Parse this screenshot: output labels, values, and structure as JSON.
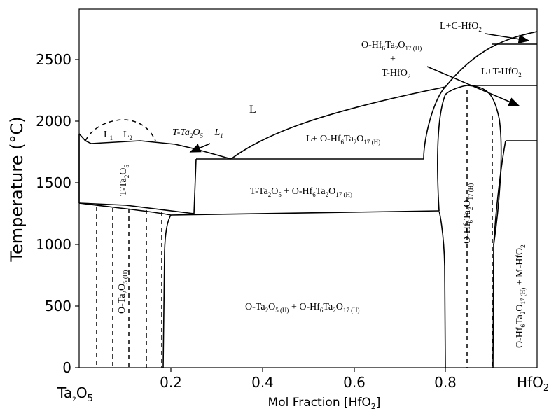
{
  "axes": {
    "ylabel": "Temperature (°C)",
    "xlabel": "Mol Fraction [HfO",
    "xlabel_sub": "2",
    "xlabel_end": "]",
    "y_ticks": [
      "0",
      "500",
      "1000",
      "1500",
      "2000",
      "2500"
    ],
    "x_ticks": [
      "0.2",
      "0.4",
      "0.6",
      "0.8"
    ],
    "x_left_end": {
      "main": "Ta",
      "s1": "2",
      "mid": "O",
      "s2": "5"
    },
    "x_right_end": {
      "main": "HfO",
      "s1": "2"
    }
  },
  "regions": {
    "liquid": "L",
    "l1_l2": {
      "a": "L",
      "s1": "1",
      "b": " + L",
      "s2": "2"
    },
    "t_ta2o5_l1": {
      "a": "T-Ta",
      "s1": "2",
      "b": "O",
      "s2": "5",
      "c": " + L",
      "s3": "1"
    },
    "l_plus_o": {
      "a": "L+ O-Hf",
      "s1": "6",
      "b": "Ta",
      "s2": "2",
      "c": "O",
      "s3": "17 (H)"
    },
    "t_ta2o5": {
      "a": "T-Ta",
      "s1": "2",
      "b": "O",
      "s2": "5"
    },
    "t_ta2o5_o": {
      "a": "T-Ta",
      "s1": "2",
      "b": "O",
      "s2": "5",
      "c": " + O-Hf",
      "s3": "6",
      "d": "Ta",
      "s4": "2",
      "e": "O",
      "s5": "17 (H)"
    },
    "o_ta2o5": {
      "a": "O-Ta",
      "s1": "2",
      "b": "O",
      "s2": "5 (H)"
    },
    "o_ta2o5_o": {
      "a": "O-Ta",
      "s1": "2",
      "b": "O",
      "s2": "5 (H)",
      "c": " + O-Hf",
      "s3": "6",
      "d": "Ta",
      "s4": "2",
      "e": "O",
      "s5": "17 (H)"
    },
    "o_hf6": {
      "a": "O-Hf",
      "s1": "6",
      "b": "Ta",
      "s2": "2",
      "c": "O",
      "s3": "17 (H)"
    },
    "o_hf6_m": {
      "a": "O-Hf",
      "s1": "6",
      "b": "Ta",
      "s2": "2",
      "c": "O",
      "s3": "17 (H)",
      "d": " + M-HfO",
      "s4": "2"
    },
    "l_c_hfo2": {
      "a": "L+C-HfO",
      "s1": "2"
    },
    "l_t_hfo2": {
      "a": "L+T-HfO",
      "s1": "2"
    },
    "o_plus_t_label": {
      "a": "O-Hf",
      "s1": "6",
      "b": "Ta",
      "s2": "2",
      "c": "O",
      "s3": "17 (H)",
      "plus": "+",
      "d": "T-HfO",
      "s4": "2"
    }
  }
}
